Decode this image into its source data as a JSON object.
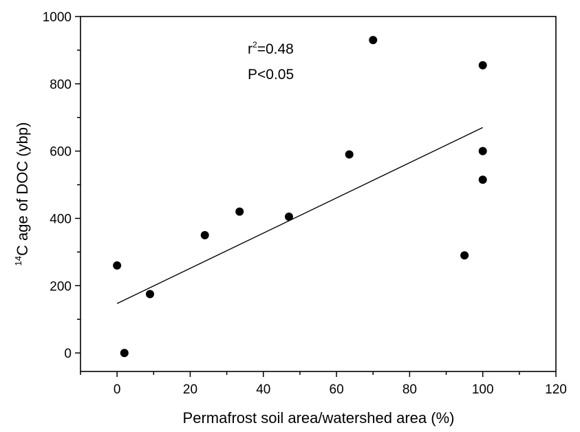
{
  "chart_data": {
    "type": "scatter",
    "title": "",
    "xlabel": "Permafrost soil area/watershed area (%)",
    "ylabel_sup": "14",
    "ylabel": "C age of DOC (ybp)",
    "xlim": [
      -10,
      120
    ],
    "ylim": [
      -55,
      1000
    ],
    "xticks": [
      0,
      20,
      40,
      60,
      80,
      100,
      120
    ],
    "xminor": [
      -10,
      10,
      30,
      50,
      70,
      90,
      110
    ],
    "yticks": [
      0,
      200,
      400,
      600,
      800,
      1000
    ],
    "yminor": [
      100,
      300,
      500,
      700,
      900
    ],
    "grid": false,
    "points": [
      {
        "x": 0,
        "y": 260
      },
      {
        "x": 2,
        "y": 0
      },
      {
        "x": 9,
        "y": 175
      },
      {
        "x": 24,
        "y": 350
      },
      {
        "x": 33.5,
        "y": 420
      },
      {
        "x": 47,
        "y": 405
      },
      {
        "x": 63.5,
        "y": 590
      },
      {
        "x": 70,
        "y": 930
      },
      {
        "x": 95,
        "y": 290
      },
      {
        "x": 100,
        "y": 855
      },
      {
        "x": 100,
        "y": 600
      },
      {
        "x": 100,
        "y": 515
      }
    ],
    "fit_line": {
      "x": [
        0,
        100
      ],
      "y": [
        147,
        670
      ]
    },
    "annotations": {
      "r2_base": "r",
      "r2_sup": "2",
      "r2_value": "=0.48",
      "p_value": "P<0.05"
    }
  }
}
